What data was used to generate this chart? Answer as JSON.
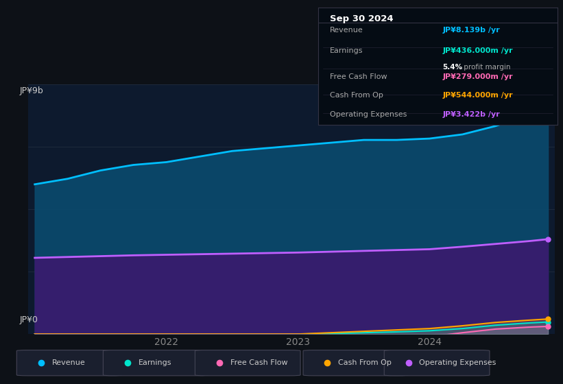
{
  "bg_color": "#0d1117",
  "chart_bg": "#0d1a2e",
  "ylabel_top": "JP¥9b",
  "ylabel_bottom": "JP¥0",
  "x_values": [
    2021.0,
    2021.25,
    2021.5,
    2021.75,
    2022.0,
    2022.25,
    2022.5,
    2022.75,
    2023.0,
    2023.25,
    2023.5,
    2023.75,
    2024.0,
    2024.25,
    2024.5,
    2024.75,
    2024.9
  ],
  "revenue": [
    5400,
    5600,
    5900,
    6100,
    6200,
    6400,
    6600,
    6700,
    6800,
    6900,
    7000,
    7000,
    7050,
    7200,
    7500,
    7900,
    8139
  ],
  "op_expenses": [
    2750,
    2780,
    2810,
    2840,
    2860,
    2880,
    2900,
    2920,
    2940,
    2970,
    3000,
    3030,
    3060,
    3150,
    3250,
    3350,
    3422
  ],
  "earnings": [
    0,
    0,
    0,
    0,
    0,
    0,
    0,
    0,
    0,
    20,
    50,
    80,
    120,
    200,
    320,
    400,
    436
  ],
  "free_cashflow": [
    0,
    0,
    0,
    0,
    0,
    0,
    0,
    0,
    0,
    -30,
    -60,
    -80,
    -100,
    50,
    180,
    250,
    279
  ],
  "cash_from_op": [
    0,
    0,
    0,
    0,
    0,
    0,
    0,
    0,
    0,
    50,
    100,
    150,
    200,
    300,
    420,
    500,
    544
  ],
  "colors": {
    "revenue": "#00bfff",
    "op_expenses": "#bf5fff",
    "earnings": "#00e5cc",
    "free_cashflow": "#ff69b4",
    "cash_from_op": "#ffa500"
  },
  "fill_revenue": "#0a4a6e",
  "fill_opex": "#3a1a6e",
  "legend": [
    {
      "label": "Revenue",
      "color": "#00bfff"
    },
    {
      "label": "Earnings",
      "color": "#00e5cc"
    },
    {
      "label": "Free Cash Flow",
      "color": "#ff69b4"
    },
    {
      "label": "Cash From Op",
      "color": "#ffa500"
    },
    {
      "label": "Operating Expenses",
      "color": "#bf5fff"
    }
  ],
  "ylim": [
    0,
    9000
  ],
  "box_title": "Sep 30 2024",
  "box_rows": [
    {
      "label": "Revenue",
      "value": "JP¥8.139b /yr",
      "value_color": "#00bfff",
      "sub": null
    },
    {
      "label": "Earnings",
      "value": "JP¥436.000m /yr",
      "value_color": "#00e5cc",
      "sub": "5.4% profit margin"
    },
    {
      "label": "Free Cash Flow",
      "value": "JP¥279.000m /yr",
      "value_color": "#ff69b4",
      "sub": null
    },
    {
      "label": "Cash From Op",
      "value": "JP¥544.000m /yr",
      "value_color": "#ffa500",
      "sub": null
    },
    {
      "label": "Operating Expenses",
      "value": "JP¥3.422b /yr",
      "value_color": "#bf5fff",
      "sub": null
    }
  ]
}
